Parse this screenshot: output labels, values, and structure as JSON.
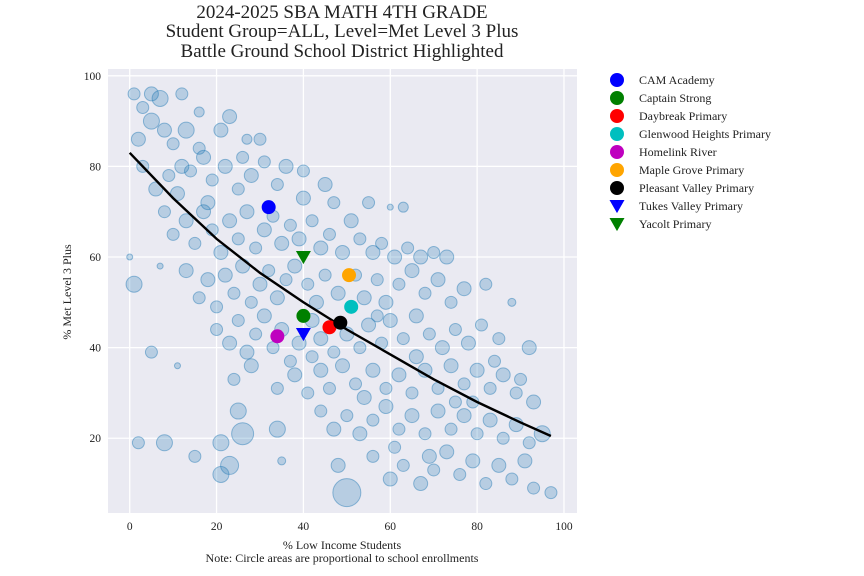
{
  "chart_data": {
    "type": "scatter",
    "title_lines": [
      "2024-2025 SBA MATH 4TH GRADE",
      "Student Group=ALL, Level=Met Level 3 Plus",
      "Battle Ground School District Highlighted"
    ],
    "xlabel": "% Low Income Students",
    "ylabel": "% Met Level 3 Plus",
    "note": "Note: Circle areas are proportional to school enrollments",
    "xlim": [
      -5,
      103
    ],
    "ylim": [
      3.5,
      101.5
    ],
    "xticks": [
      0,
      20,
      40,
      60,
      80,
      100
    ],
    "yticks": [
      20,
      40,
      60,
      80,
      100
    ],
    "grid": true,
    "background_color": "#eaeaf2",
    "scatter_color": "#1f77b4",
    "trend_line": {
      "x": [
        0,
        10,
        20,
        30,
        40,
        50,
        60,
        70,
        80,
        90,
        97
      ],
      "y": [
        83,
        73,
        64,
        56.5,
        50,
        44,
        38.5,
        33,
        28,
        23.5,
        20.5
      ]
    },
    "background_points": [
      {
        "x": 1,
        "y": 96,
        "s": 6
      },
      {
        "x": 3,
        "y": 93,
        "s": 6
      },
      {
        "x": 5,
        "y": 96,
        "s": 7
      },
      {
        "x": 7,
        "y": 95,
        "s": 8
      },
      {
        "x": 12,
        "y": 96,
        "s": 6
      },
      {
        "x": 23,
        "y": 91,
        "s": 7
      },
      {
        "x": 2,
        "y": 86,
        "s": 7
      },
      {
        "x": 5,
        "y": 90,
        "s": 8
      },
      {
        "x": 8,
        "y": 88,
        "s": 7
      },
      {
        "x": 10,
        "y": 85,
        "s": 6
      },
      {
        "x": 13,
        "y": 88,
        "s": 8
      },
      {
        "x": 16,
        "y": 84,
        "s": 6
      },
      {
        "x": 21,
        "y": 88,
        "s": 7
      },
      {
        "x": 27,
        "y": 86,
        "s": 5
      },
      {
        "x": 30,
        "y": 86,
        "s": 6
      },
      {
        "x": 3,
        "y": 80,
        "s": 6
      },
      {
        "x": 6,
        "y": 75,
        "s": 7
      },
      {
        "x": 9,
        "y": 78,
        "s": 6
      },
      {
        "x": 11,
        "y": 74,
        "s": 7
      },
      {
        "x": 14,
        "y": 79,
        "s": 6
      },
      {
        "x": 17,
        "y": 82,
        "s": 7
      },
      {
        "x": 19,
        "y": 77,
        "s": 6
      },
      {
        "x": 22,
        "y": 80,
        "s": 7
      },
      {
        "x": 25,
        "y": 75,
        "s": 6
      },
      {
        "x": 28,
        "y": 78,
        "s": 7
      },
      {
        "x": 31,
        "y": 81,
        "s": 6
      },
      {
        "x": 34,
        "y": 76,
        "s": 6
      },
      {
        "x": 36,
        "y": 80,
        "s": 7
      },
      {
        "x": 40,
        "y": 79,
        "s": 6
      },
      {
        "x": 45,
        "y": 76,
        "s": 7
      },
      {
        "x": 47,
        "y": 72,
        "s": 6
      },
      {
        "x": 51,
        "y": 68,
        "s": 7
      },
      {
        "x": 55,
        "y": 72,
        "s": 6
      },
      {
        "x": 63,
        "y": 71,
        "s": 5
      },
      {
        "x": 8,
        "y": 70,
        "s": 6
      },
      {
        "x": 10,
        "y": 65,
        "s": 6
      },
      {
        "x": 13,
        "y": 68,
        "s": 7
      },
      {
        "x": 15,
        "y": 63,
        "s": 6
      },
      {
        "x": 17,
        "y": 70,
        "s": 7
      },
      {
        "x": 19,
        "y": 66,
        "s": 6
      },
      {
        "x": 21,
        "y": 61,
        "s": 7
      },
      {
        "x": 23,
        "y": 68,
        "s": 7
      },
      {
        "x": 25,
        "y": 64,
        "s": 6
      },
      {
        "x": 27,
        "y": 70,
        "s": 7
      },
      {
        "x": 29,
        "y": 62,
        "s": 6
      },
      {
        "x": 31,
        "y": 66,
        "s": 7
      },
      {
        "x": 33,
        "y": 69,
        "s": 6
      },
      {
        "x": 35,
        "y": 63,
        "s": 7
      },
      {
        "x": 37,
        "y": 67,
        "s": 6
      },
      {
        "x": 39,
        "y": 64,
        "s": 7
      },
      {
        "x": 42,
        "y": 68,
        "s": 6
      },
      {
        "x": 44,
        "y": 62,
        "s": 7
      },
      {
        "x": 46,
        "y": 65,
        "s": 6
      },
      {
        "x": 49,
        "y": 61,
        "s": 7
      },
      {
        "x": 53,
        "y": 64,
        "s": 6
      },
      {
        "x": 56,
        "y": 61,
        "s": 7
      },
      {
        "x": 58,
        "y": 63,
        "s": 6
      },
      {
        "x": 61,
        "y": 60,
        "s": 7
      },
      {
        "x": 64,
        "y": 62,
        "s": 6
      },
      {
        "x": 67,
        "y": 60,
        "s": 7
      },
      {
        "x": 70,
        "y": 61,
        "s": 6
      },
      {
        "x": 73,
        "y": 60,
        "s": 7
      },
      {
        "x": 1,
        "y": 54,
        "s": 8
      },
      {
        "x": 13,
        "y": 57,
        "s": 7
      },
      {
        "x": 16,
        "y": 51,
        "s": 6
      },
      {
        "x": 18,
        "y": 55,
        "s": 7
      },
      {
        "x": 20,
        "y": 49,
        "s": 6
      },
      {
        "x": 22,
        "y": 56,
        "s": 7
      },
      {
        "x": 24,
        "y": 52,
        "s": 6
      },
      {
        "x": 26,
        "y": 58,
        "s": 7
      },
      {
        "x": 28,
        "y": 50,
        "s": 6
      },
      {
        "x": 30,
        "y": 54,
        "s": 7
      },
      {
        "x": 32,
        "y": 57,
        "s": 6
      },
      {
        "x": 34,
        "y": 51,
        "s": 7
      },
      {
        "x": 36,
        "y": 55,
        "s": 6
      },
      {
        "x": 38,
        "y": 58,
        "s": 7
      },
      {
        "x": 41,
        "y": 54,
        "s": 6
      },
      {
        "x": 43,
        "y": 50,
        "s": 7
      },
      {
        "x": 45,
        "y": 56,
        "s": 6
      },
      {
        "x": 48,
        "y": 52,
        "s": 7
      },
      {
        "x": 52,
        "y": 56,
        "s": 6
      },
      {
        "x": 54,
        "y": 51,
        "s": 7
      },
      {
        "x": 57,
        "y": 55,
        "s": 6
      },
      {
        "x": 59,
        "y": 50,
        "s": 7
      },
      {
        "x": 62,
        "y": 54,
        "s": 6
      },
      {
        "x": 65,
        "y": 57,
        "s": 7
      },
      {
        "x": 68,
        "y": 52,
        "s": 6
      },
      {
        "x": 71,
        "y": 55,
        "s": 7
      },
      {
        "x": 74,
        "y": 50,
        "s": 6
      },
      {
        "x": 77,
        "y": 53,
        "s": 7
      },
      {
        "x": 82,
        "y": 54,
        "s": 6
      },
      {
        "x": 88,
        "y": 50,
        "s": 4
      },
      {
        "x": 5,
        "y": 39,
        "s": 6
      },
      {
        "x": 20,
        "y": 44,
        "s": 6
      },
      {
        "x": 23,
        "y": 41,
        "s": 7
      },
      {
        "x": 25,
        "y": 46,
        "s": 6
      },
      {
        "x": 27,
        "y": 39,
        "s": 7
      },
      {
        "x": 29,
        "y": 43,
        "s": 6
      },
      {
        "x": 31,
        "y": 47,
        "s": 7
      },
      {
        "x": 33,
        "y": 40,
        "s": 6
      },
      {
        "x": 35,
        "y": 44,
        "s": 7
      },
      {
        "x": 37,
        "y": 37,
        "s": 6
      },
      {
        "x": 39,
        "y": 41,
        "s": 7
      },
      {
        "x": 42,
        "y": 38,
        "s": 6
      },
      {
        "x": 44,
        "y": 42,
        "s": 7
      },
      {
        "x": 47,
        "y": 39,
        "s": 6
      },
      {
        "x": 50,
        "y": 43,
        "s": 7
      },
      {
        "x": 53,
        "y": 40,
        "s": 6
      },
      {
        "x": 55,
        "y": 45,
        "s": 7
      },
      {
        "x": 58,
        "y": 41,
        "s": 6
      },
      {
        "x": 60,
        "y": 46,
        "s": 7
      },
      {
        "x": 63,
        "y": 42,
        "s": 6
      },
      {
        "x": 66,
        "y": 47,
        "s": 7
      },
      {
        "x": 69,
        "y": 43,
        "s": 6
      },
      {
        "x": 72,
        "y": 40,
        "s": 7
      },
      {
        "x": 75,
        "y": 44,
        "s": 6
      },
      {
        "x": 78,
        "y": 41,
        "s": 7
      },
      {
        "x": 81,
        "y": 45,
        "s": 6
      },
      {
        "x": 85,
        "y": 42,
        "s": 6
      },
      {
        "x": 92,
        "y": 40,
        "s": 7
      },
      {
        "x": 24,
        "y": 33,
        "s": 6
      },
      {
        "x": 28,
        "y": 36,
        "s": 7
      },
      {
        "x": 34,
        "y": 31,
        "s": 6
      },
      {
        "x": 38,
        "y": 34,
        "s": 7
      },
      {
        "x": 41,
        "y": 30,
        "s": 6
      },
      {
        "x": 44,
        "y": 35,
        "s": 7
      },
      {
        "x": 46,
        "y": 31,
        "s": 6
      },
      {
        "x": 49,
        "y": 36,
        "s": 7
      },
      {
        "x": 52,
        "y": 32,
        "s": 6
      },
      {
        "x": 56,
        "y": 35,
        "s": 7
      },
      {
        "x": 59,
        "y": 31,
        "s": 6
      },
      {
        "x": 62,
        "y": 34,
        "s": 7
      },
      {
        "x": 65,
        "y": 30,
        "s": 6
      },
      {
        "x": 68,
        "y": 35,
        "s": 7
      },
      {
        "x": 71,
        "y": 31,
        "s": 6
      },
      {
        "x": 74,
        "y": 36,
        "s": 7
      },
      {
        "x": 77,
        "y": 32,
        "s": 6
      },
      {
        "x": 80,
        "y": 35,
        "s": 7
      },
      {
        "x": 83,
        "y": 31,
        "s": 6
      },
      {
        "x": 86,
        "y": 34,
        "s": 7
      },
      {
        "x": 89,
        "y": 30,
        "s": 6
      },
      {
        "x": 93,
        "y": 28,
        "s": 7
      },
      {
        "x": 25,
        "y": 26,
        "s": 8
      },
      {
        "x": 44,
        "y": 26,
        "s": 6
      },
      {
        "x": 47,
        "y": 22,
        "s": 7
      },
      {
        "x": 50,
        "y": 25,
        "s": 6
      },
      {
        "x": 53,
        "y": 21,
        "s": 7
      },
      {
        "x": 56,
        "y": 24,
        "s": 6
      },
      {
        "x": 59,
        "y": 27,
        "s": 7
      },
      {
        "x": 62,
        "y": 22,
        "s": 6
      },
      {
        "x": 65,
        "y": 25,
        "s": 7
      },
      {
        "x": 68,
        "y": 21,
        "s": 6
      },
      {
        "x": 71,
        "y": 26,
        "s": 7
      },
      {
        "x": 74,
        "y": 22,
        "s": 6
      },
      {
        "x": 77,
        "y": 25,
        "s": 7
      },
      {
        "x": 80,
        "y": 21,
        "s": 6
      },
      {
        "x": 83,
        "y": 24,
        "s": 7
      },
      {
        "x": 86,
        "y": 20,
        "s": 6
      },
      {
        "x": 89,
        "y": 23,
        "s": 7
      },
      {
        "x": 92,
        "y": 19,
        "s": 6
      },
      {
        "x": 95,
        "y": 21,
        "s": 8
      },
      {
        "x": 2,
        "y": 19,
        "s": 6
      },
      {
        "x": 8,
        "y": 19,
        "s": 8
      },
      {
        "x": 15,
        "y": 16,
        "s": 6
      },
      {
        "x": 21,
        "y": 19,
        "s": 8
      },
      {
        "x": 26,
        "y": 21,
        "s": 11
      },
      {
        "x": 34,
        "y": 22,
        "s": 8
      },
      {
        "x": 21,
        "y": 12,
        "s": 8
      },
      {
        "x": 23,
        "y": 14,
        "s": 9
      },
      {
        "x": 48,
        "y": 14,
        "s": 7
      },
      {
        "x": 50,
        "y": 8,
        "s": 14
      },
      {
        "x": 56,
        "y": 16,
        "s": 6
      },
      {
        "x": 60,
        "y": 11,
        "s": 7
      },
      {
        "x": 63,
        "y": 14,
        "s": 6
      },
      {
        "x": 67,
        "y": 10,
        "s": 7
      },
      {
        "x": 70,
        "y": 13,
        "s": 6
      },
      {
        "x": 73,
        "y": 17,
        "s": 7
      },
      {
        "x": 76,
        "y": 12,
        "s": 6
      },
      {
        "x": 79,
        "y": 15,
        "s": 7
      },
      {
        "x": 82,
        "y": 10,
        "s": 6
      },
      {
        "x": 85,
        "y": 14,
        "s": 7
      },
      {
        "x": 88,
        "y": 11,
        "s": 6
      },
      {
        "x": 91,
        "y": 15,
        "s": 7
      },
      {
        "x": 93,
        "y": 9,
        "s": 6
      },
      {
        "x": 97,
        "y": 8,
        "s": 6
      },
      {
        "x": 0,
        "y": 60,
        "s": 3
      },
      {
        "x": 7,
        "y": 58,
        "s": 3
      },
      {
        "x": 11,
        "y": 36,
        "s": 3
      },
      {
        "x": 60,
        "y": 71,
        "s": 3
      },
      {
        "x": 35,
        "y": 15,
        "s": 4
      },
      {
        "x": 16,
        "y": 92,
        "s": 5
      },
      {
        "x": 18,
        "y": 72,
        "s": 7
      },
      {
        "x": 40,
        "y": 73,
        "s": 7
      },
      {
        "x": 42,
        "y": 46,
        "s": 7
      },
      {
        "x": 57,
        "y": 47,
        "s": 6
      },
      {
        "x": 66,
        "y": 38,
        "s": 7
      },
      {
        "x": 79,
        "y": 28,
        "s": 6
      },
      {
        "x": 84,
        "y": 37,
        "s": 6
      },
      {
        "x": 54,
        "y": 29,
        "s": 7
      },
      {
        "x": 61,
        "y": 18,
        "s": 6
      },
      {
        "x": 69,
        "y": 16,
        "s": 7
      },
      {
        "x": 75,
        "y": 28,
        "s": 6
      },
      {
        "x": 90,
        "y": 33,
        "s": 6
      },
      {
        "x": 12,
        "y": 80,
        "s": 7
      },
      {
        "x": 26,
        "y": 82,
        "s": 6
      }
    ],
    "highlighted": [
      {
        "name": "CAM Academy",
        "x": 32,
        "y": 71,
        "marker": "circle",
        "color": "#0000ff"
      },
      {
        "name": "Captain Strong",
        "x": 40,
        "y": 47,
        "marker": "circle",
        "color": "#008000"
      },
      {
        "name": "Daybreak Primary",
        "x": 46,
        "y": 44.5,
        "marker": "circle",
        "color": "#ff0000"
      },
      {
        "name": "Glenwood Heights Primary",
        "x": 51,
        "y": 49,
        "marker": "circle",
        "color": "#00bfbf"
      },
      {
        "name": "Homelink River",
        "x": 34,
        "y": 42.5,
        "marker": "circle",
        "color": "#bf00bf"
      },
      {
        "name": "Maple Grove Primary",
        "x": 50.5,
        "y": 56,
        "marker": "circle",
        "color": "#ffa500"
      },
      {
        "name": "Pleasant Valley Primary",
        "x": 48.5,
        "y": 45.5,
        "marker": "circle",
        "color": "#000000"
      },
      {
        "name": "Tukes Valley Primary",
        "x": 40,
        "y": 43,
        "marker": "triangle-down",
        "color": "#0000ff"
      },
      {
        "name": "Yacolt Primary",
        "x": 40,
        "y": 60,
        "marker": "triangle-down",
        "color": "#008000"
      }
    ],
    "legend_position": "outside right, top"
  }
}
